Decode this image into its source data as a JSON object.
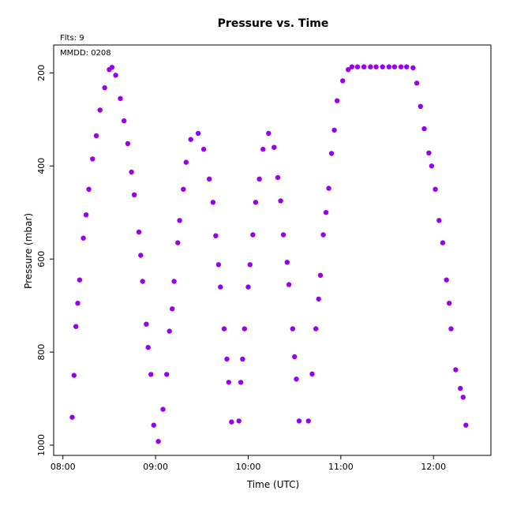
{
  "chart_data": {
    "type": "scatter",
    "title": "Pressure  vs. Time",
    "subtitle_flts": "Flts: 9",
    "annotation": "MMDD: 0208",
    "xlabel": "Time (UTC)",
    "ylabel": "Pressure (mbar)",
    "x_ticks": [
      "08:00",
      "09:00",
      "10:00",
      "11:00",
      "12:00"
    ],
    "y_ticks": [
      "200",
      "400",
      "600",
      "800",
      "1000"
    ],
    "xlim_hours": [
      7.9,
      12.62
    ],
    "ylim": [
      1022,
      140
    ],
    "y_reversed": true,
    "marker_color": "#9900ee",
    "points": [
      [
        8.1,
        940
      ],
      [
        8.12,
        850
      ],
      [
        8.14,
        745
      ],
      [
        8.16,
        695
      ],
      [
        8.18,
        645
      ],
      [
        8.22,
        555
      ],
      [
        8.25,
        505
      ],
      [
        8.28,
        450
      ],
      [
        8.32,
        385
      ],
      [
        8.36,
        335
      ],
      [
        8.4,
        280
      ],
      [
        8.45,
        232
      ],
      [
        8.5,
        193
      ],
      [
        8.53,
        188
      ],
      [
        8.57,
        205
      ],
      [
        8.62,
        255
      ],
      [
        8.66,
        303
      ],
      [
        8.7,
        352
      ],
      [
        8.74,
        413
      ],
      [
        8.77,
        462
      ],
      [
        8.82,
        542
      ],
      [
        8.84,
        592
      ],
      [
        8.86,
        648
      ],
      [
        8.9,
        740
      ],
      [
        8.92,
        790
      ],
      [
        8.95,
        848
      ],
      [
        8.98,
        957
      ],
      [
        9.03,
        992
      ],
      [
        9.08,
        923
      ],
      [
        9.12,
        848
      ],
      [
        9.15,
        755
      ],
      [
        9.18,
        707
      ],
      [
        9.2,
        648
      ],
      [
        9.24,
        565
      ],
      [
        9.26,
        517
      ],
      [
        9.3,
        450
      ],
      [
        9.33,
        392
      ],
      [
        9.38,
        343
      ],
      [
        9.46,
        330
      ],
      [
        9.52,
        364
      ],
      [
        9.58,
        428
      ],
      [
        9.62,
        478
      ],
      [
        9.65,
        550
      ],
      [
        9.68,
        612
      ],
      [
        9.7,
        660
      ],
      [
        9.74,
        750
      ],
      [
        9.77,
        815
      ],
      [
        9.79,
        865
      ],
      [
        9.82,
        950
      ],
      [
        9.9,
        948
      ],
      [
        9.92,
        865
      ],
      [
        9.94,
        815
      ],
      [
        9.96,
        750
      ],
      [
        10.0,
        660
      ],
      [
        10.02,
        612
      ],
      [
        10.05,
        548
      ],
      [
        10.08,
        478
      ],
      [
        10.12,
        428
      ],
      [
        10.16,
        364
      ],
      [
        10.22,
        330
      ],
      [
        10.28,
        360
      ],
      [
        10.32,
        425
      ],
      [
        10.35,
        475
      ],
      [
        10.38,
        548
      ],
      [
        10.42,
        607
      ],
      [
        10.44,
        655
      ],
      [
        10.48,
        750
      ],
      [
        10.5,
        810
      ],
      [
        10.52,
        858
      ],
      [
        10.55,
        948
      ],
      [
        10.65,
        948
      ],
      [
        10.69,
        847
      ],
      [
        10.73,
        750
      ],
      [
        10.76,
        686
      ],
      [
        10.78,
        635
      ],
      [
        10.81,
        548
      ],
      [
        10.84,
        500
      ],
      [
        10.87,
        448
      ],
      [
        10.9,
        373
      ],
      [
        10.93,
        323
      ],
      [
        10.96,
        260
      ],
      [
        11.02,
        217
      ],
      [
        11.08,
        193
      ],
      [
        11.12,
        187
      ],
      [
        11.18,
        187
      ],
      [
        11.25,
        187
      ],
      [
        11.32,
        187
      ],
      [
        11.38,
        187
      ],
      [
        11.45,
        187
      ],
      [
        11.52,
        187
      ],
      [
        11.58,
        187
      ],
      [
        11.65,
        187
      ],
      [
        11.71,
        187
      ],
      [
        11.78,
        189
      ],
      [
        11.82,
        222
      ],
      [
        11.86,
        272
      ],
      [
        11.9,
        320
      ],
      [
        11.95,
        372
      ],
      [
        11.98,
        400
      ],
      [
        12.02,
        450
      ],
      [
        12.06,
        517
      ],
      [
        12.1,
        565
      ],
      [
        12.14,
        645
      ],
      [
        12.17,
        695
      ],
      [
        12.19,
        750
      ],
      [
        12.24,
        838
      ],
      [
        12.29,
        878
      ],
      [
        12.32,
        897
      ],
      [
        12.35,
        957
      ]
    ]
  }
}
